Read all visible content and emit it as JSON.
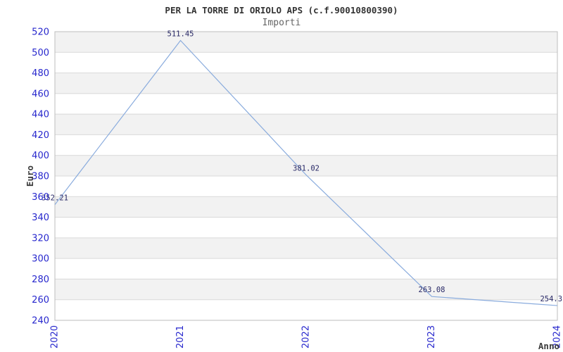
{
  "chart_data": {
    "type": "line",
    "title": "PER LA TORRE DI ORIOLO APS (c.f.90010800390)",
    "subtitle": "Importi",
    "xlabel": "Anno",
    "ylabel": "Euro",
    "categories": [
      "2020",
      "2021",
      "2022",
      "2023",
      "2024"
    ],
    "series": [
      {
        "name": "Importi",
        "values": [
          352.21,
          511.45,
          381.02,
          263.08,
          254.3
        ]
      }
    ],
    "point_labels": [
      "352.21",
      "511.45",
      "381.02",
      "263.08",
      "254.3"
    ],
    "ylim": [
      240,
      520
    ],
    "yticks": [
      240,
      260,
      280,
      300,
      320,
      340,
      360,
      380,
      400,
      420,
      440,
      460,
      480,
      500,
      520
    ],
    "x_tick_rotation": 90,
    "grid": "horizontal",
    "band_style": "alternating-gray-white-top-gray",
    "legend": "none",
    "markers": "none",
    "colors": {
      "line": "#89abdd",
      "tick_label": "#2727cd",
      "point_label": "#282866",
      "title": "#333333",
      "subtitle": "#666666",
      "axis_title": "#3d3d3d",
      "band_fill": "#f2f2f2",
      "gridline": "#d9d9d9",
      "border": "#bdbdbd",
      "background": "#ffffff"
    }
  }
}
